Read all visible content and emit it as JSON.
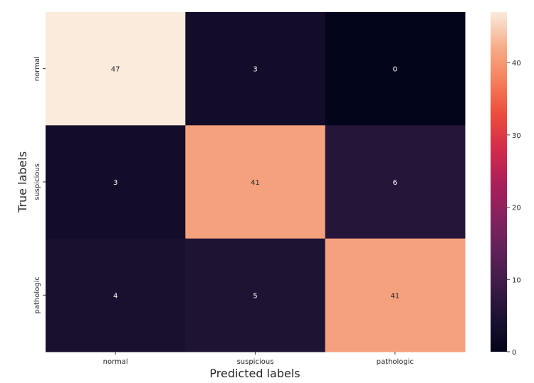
{
  "chart_data": {
    "type": "heatmap",
    "x_categories": [
      "normal",
      "suspicious",
      "pathologic"
    ],
    "y_categories": [
      "normal",
      "suspicious",
      "pathologic"
    ],
    "values": [
      [
        47,
        3,
        0
      ],
      [
        3,
        41,
        6
      ],
      [
        4,
        5,
        41
      ]
    ],
    "xlabel": "Predicted labels",
    "ylabel": "True labels",
    "colorbar": {
      "min": 0,
      "max": 47,
      "ticks": [
        0,
        10,
        20,
        30,
        40
      ]
    },
    "colormap": "rocket",
    "annotations": true,
    "grid": false
  }
}
